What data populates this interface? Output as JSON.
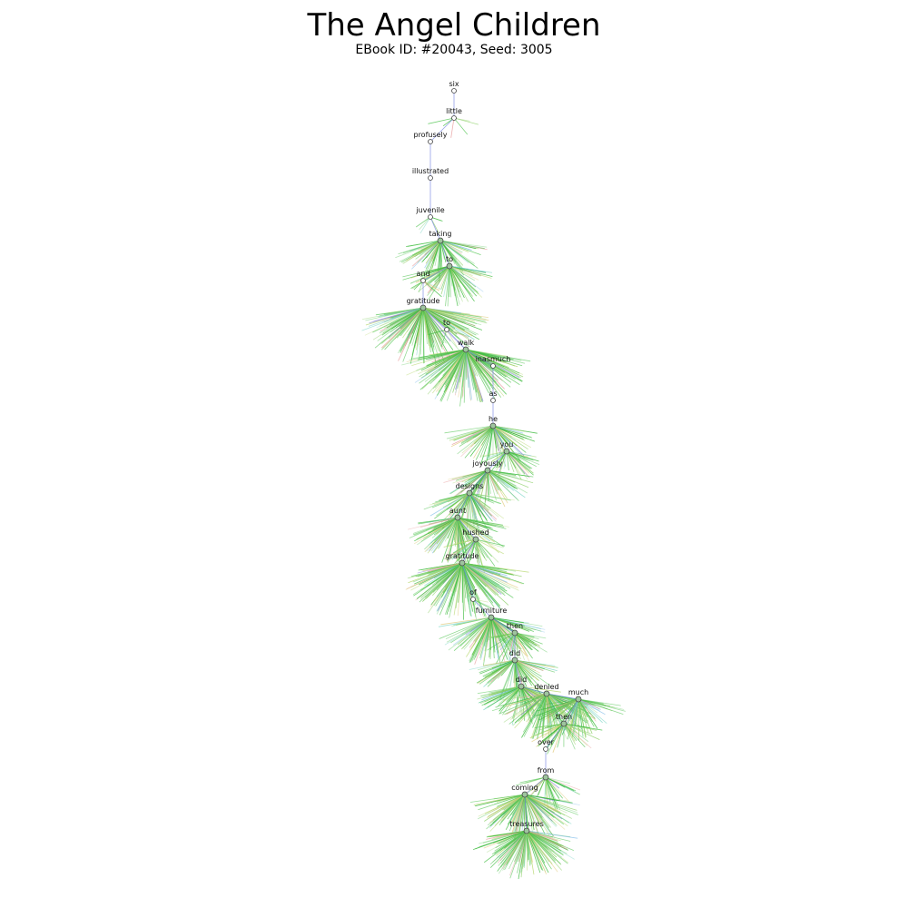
{
  "title": "The Angel Children",
  "subtitle": "EBook ID: #20043, Seed: 3005",
  "colors": {
    "stem": "#6f7fe0",
    "node_stroke": "#444444",
    "node_fill_leaf": "#ffffff",
    "node_fill_hub": "#9ec49e",
    "fan_palette": [
      "#3dbb3d",
      "#5ac85a",
      "#8fd06a",
      "#b8d870",
      "#e0c878",
      "#e8a0a0",
      "#7fd6c8",
      "#78b8e8",
      "#8a7fd8"
    ]
  },
  "nodes": [
    {
      "word": "six",
      "fan": 0
    },
    {
      "word": "little",
      "fan": 1
    },
    {
      "word": "profusely",
      "fan": 0
    },
    {
      "word": "illustrated",
      "fan": 0
    },
    {
      "word": "juvenile",
      "fan": 1
    },
    {
      "word": "taking",
      "fan": 3
    },
    {
      "word": "to",
      "fan": 3
    },
    {
      "word": "and",
      "fan": 1
    },
    {
      "word": "gratitude",
      "fan": 5
    },
    {
      "word": "to",
      "fan": 1
    },
    {
      "word": "walk",
      "fan": 5
    },
    {
      "word": "inasmuch",
      "fan": 0
    },
    {
      "word": "as",
      "fan": 0
    },
    {
      "word": "he",
      "fan": 3
    },
    {
      "word": "you",
      "fan": 2
    },
    {
      "word": "joyously",
      "fan": 3
    },
    {
      "word": "designs",
      "fan": 3
    },
    {
      "word": "aunt",
      "fan": 4
    },
    {
      "word": "hushed",
      "fan": 2
    },
    {
      "word": "gratitude",
      "fan": 5
    },
    {
      "word": "of",
      "fan": 1
    },
    {
      "word": "furniture",
      "fan": 4
    },
    {
      "word": "then",
      "fan": 2
    },
    {
      "word": "did",
      "fan": 3
    },
    {
      "word": "did",
      "fan": 3
    },
    {
      "word": "denied",
      "fan": 4
    },
    {
      "word": "much",
      "fan": 3
    },
    {
      "word": "then",
      "fan": 2
    },
    {
      "word": "over",
      "fan": 0
    },
    {
      "word": "from",
      "fan": 2
    },
    {
      "word": "coming",
      "fan": 4
    },
    {
      "word": "treasures",
      "fan": 4
    }
  ]
}
